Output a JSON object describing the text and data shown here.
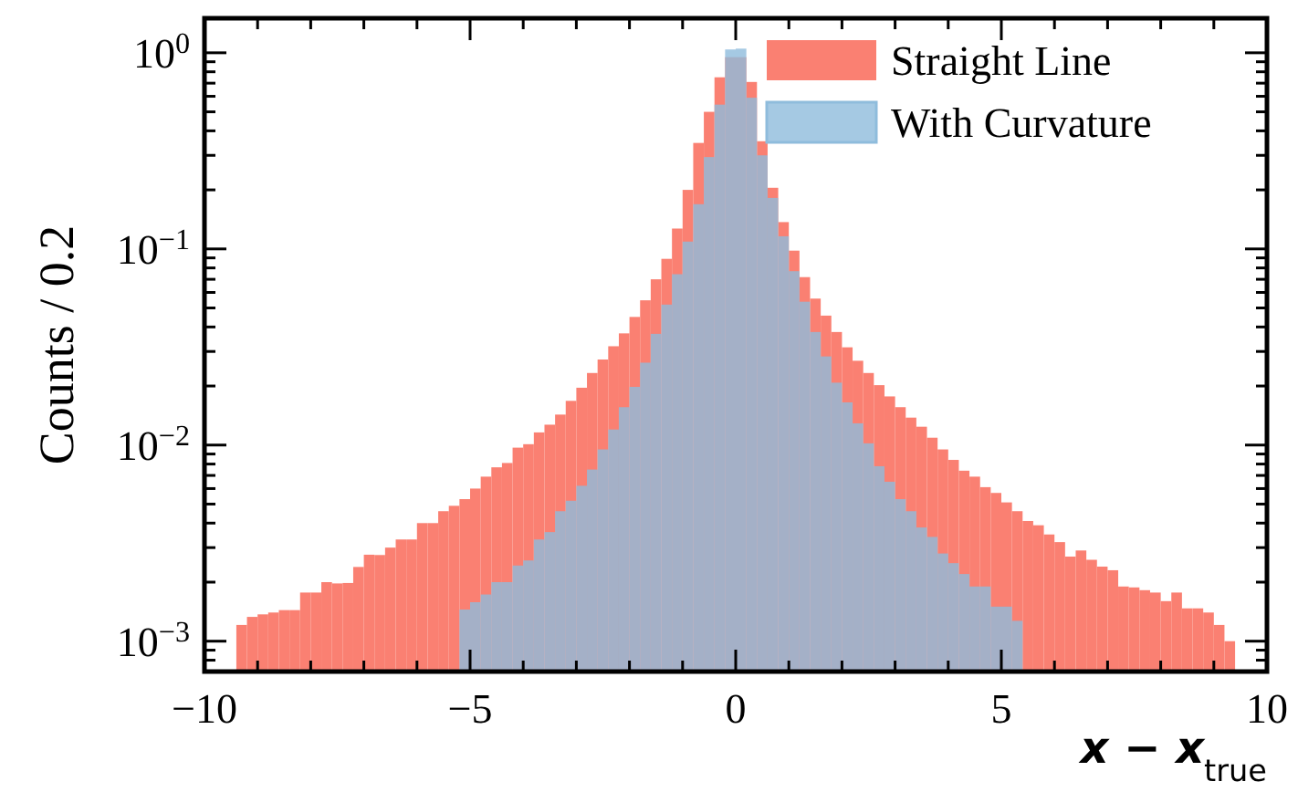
{
  "chart_data": {
    "type": "histogram",
    "xlabel": "x − x$_{true}$",
    "ylabel": "Counts / 0.2",
    "log": true,
    "legend": "top right",
    "xlim": [
      -10,
      10
    ],
    "ylim": [
      0.0007,
      1.5
    ],
    "xticks": [
      -10,
      {
        "value": -9,
        "label": null
      },
      {
        "value": -8,
        "label": null
      },
      {
        "value": -7,
        "label": null
      },
      {
        "value": -6,
        "label": null
      },
      -5,
      {
        "value": -4,
        "label": null
      },
      {
        "value": -3,
        "label": null
      },
      {
        "value": -2,
        "label": null
      },
      {
        "value": -1,
        "label": null
      },
      0,
      {
        "value": 1,
        "label": null
      },
      {
        "value": 2,
        "label": null
      },
      {
        "value": 3,
        "label": null
      },
      {
        "value": 4,
        "label": null
      },
      5,
      {
        "value": 6,
        "label": null
      },
      {
        "value": 7,
        "label": null
      },
      {
        "value": 8,
        "label": null
      },
      {
        "value": 9,
        "label": null
      },
      10
    ],
    "yticks": [
      {
        "value": 0.0008,
        "label": null
      },
      {
        "value": 0.0009,
        "label": null
      },
      {
        "value": 0.001,
        "label": "10$^{−3}$"
      },
      {
        "value": 0.002,
        "label": null
      },
      {
        "value": 0.003,
        "label": null
      },
      {
        "value": 0.004,
        "label": null
      },
      {
        "value": 0.005,
        "label": null
      },
      {
        "value": 0.006,
        "label": null
      },
      {
        "value": 0.007,
        "label": null
      },
      {
        "value": 0.008,
        "label": null
      },
      {
        "value": 0.009,
        "label": null
      },
      {
        "value": 0.01,
        "label": "10$^{−2}$"
      },
      {
        "value": 0.02,
        "label": null
      },
      {
        "value": 0.03,
        "label": null
      },
      {
        "value": 0.04,
        "label": null
      },
      {
        "value": 0.05,
        "label": null
      },
      {
        "value": 0.06,
        "label": null
      },
      {
        "value": 0.07,
        "label": null
      },
      {
        "value": 0.08,
        "label": null
      },
      {
        "value": 0.09,
        "label": null
      },
      {
        "value": 0.1,
        "label": "10$^{−1}$"
      },
      {
        "value": 0.2,
        "label": null
      },
      {
        "value": 0.3,
        "label": null
      },
      {
        "value": 0.4,
        "label": null
      },
      {
        "value": 0.5,
        "label": null
      },
      {
        "value": 0.6,
        "label": null
      },
      {
        "value": 0.7,
        "label": null
      },
      {
        "value": 0.8,
        "label": null
      },
      {
        "value": 0.9,
        "label": null
      },
      {
        "value": 1,
        "label": "10$^{0}$"
      }
    ],
    "bins": [
      -9.4,
      -9.2,
      -9.0,
      -8.8,
      -8.6,
      -8.4,
      -8.2,
      -8.0,
      -7.8,
      -7.6,
      -7.4,
      -7.2,
      -7.0,
      -6.8,
      -6.6,
      -6.4,
      -6.2,
      -6.0,
      -5.8,
      -5.6,
      -5.4,
      -5.2,
      -5.0,
      -4.8,
      -4.6,
      -4.4,
      -4.2,
      -4.0,
      -3.8,
      -3.6,
      -3.4,
      -3.2,
      -3.0,
      -2.8,
      -2.6,
      -2.4,
      -2.2,
      -2.0,
      -1.8,
      -1.6,
      -1.4,
      -1.2,
      -1.0,
      -0.8,
      -0.6,
      -0.4,
      -0.2,
      0,
      0.2,
      0.4,
      0.6,
      0.8,
      1.0,
      1.2,
      1.4,
      1.6,
      1.8,
      2.0,
      2.2,
      2.4,
      2.6,
      2.8,
      3.0,
      3.2,
      3.4,
      3.6,
      3.8,
      4.0,
      4.2,
      4.4,
      4.6,
      4.8,
      5.0,
      5.2,
      5.4,
      5.6,
      5.8,
      6.0,
      6.2,
      6.4,
      6.6,
      6.8,
      7.0,
      7.2,
      7.4,
      7.6,
      7.8,
      8.0,
      8.2,
      8.4,
      8.6,
      8.8,
      9.0,
      9.2,
      9.4
    ],
    "series": [
      {
        "name": "Straight Line",
        "color": "#fa8072",
        "values": [
          0.00121,
          0.00133,
          0.00137,
          0.0014,
          0.00144,
          0.00144,
          0.00177,
          0.00177,
          0.002,
          0.00197,
          0.00198,
          0.00239,
          0.00276,
          0.00275,
          0.003,
          0.0033,
          0.0033,
          0.004,
          0.004,
          0.0046,
          0.0049,
          0.0053,
          0.006,
          0.0069,
          0.0077,
          0.0081,
          0.0097,
          0.0101,
          0.0116,
          0.0127,
          0.0143,
          0.0168,
          0.0196,
          0.0233,
          0.0273,
          0.0319,
          0.0371,
          0.045,
          0.0547,
          0.07,
          0.089,
          0.127,
          0.2,
          0.347,
          0.5,
          0.75,
          0.95,
          0.95,
          0.71,
          0.354,
          0.205,
          0.137,
          0.098,
          0.0718,
          0.0558,
          0.0457,
          0.0377,
          0.0315,
          0.0269,
          0.0233,
          0.0202,
          0.0177,
          0.0156,
          0.0138,
          0.0124,
          0.0109,
          0.0095,
          0.0084,
          0.0074,
          0.0069,
          0.0061,
          0.0057,
          0.0051,
          0.0046,
          0.0041,
          0.0039,
          0.0035,
          0.0032,
          0.0027,
          0.0029,
          0.0026,
          0.0024,
          0.0023,
          0.0019,
          0.00188,
          0.00182,
          0.00177,
          0.0016,
          0.00177,
          0.00147,
          0.00147,
          0.0014,
          0.00121,
          0.001
        ]
      },
      {
        "name": "With Curvature",
        "color": "#8fbcdc",
        "values": [
          null,
          null,
          null,
          null,
          null,
          null,
          null,
          null,
          null,
          null,
          null,
          null,
          null,
          null,
          null,
          null,
          null,
          null,
          null,
          null,
          null,
          0.00145,
          0.00158,
          0.00173,
          0.002,
          0.002,
          0.00243,
          0.00258,
          0.0033,
          0.0036,
          0.0046,
          0.0052,
          0.0062,
          0.0075,
          0.0095,
          0.012,
          0.0156,
          0.0198,
          0.0263,
          0.0369,
          0.052,
          0.0743,
          0.109,
          0.169,
          0.294,
          0.544,
          1.04,
          1.05,
          0.59,
          0.3,
          0.182,
          0.116,
          0.077,
          0.0538,
          0.0377,
          0.0283,
          0.0208,
          0.0165,
          0.0129,
          0.0102,
          0.0078,
          0.0065,
          0.0053,
          0.0046,
          0.0038,
          0.0034,
          0.0028,
          0.0025,
          0.0022,
          0.0019,
          0.0019,
          0.0015,
          0.0015,
          0.00127,
          null,
          null,
          null,
          null,
          null,
          null,
          null,
          null,
          null,
          null,
          null,
          null,
          null,
          null,
          null,
          null,
          null,
          null,
          null,
          null
        ]
      }
    ]
  }
}
